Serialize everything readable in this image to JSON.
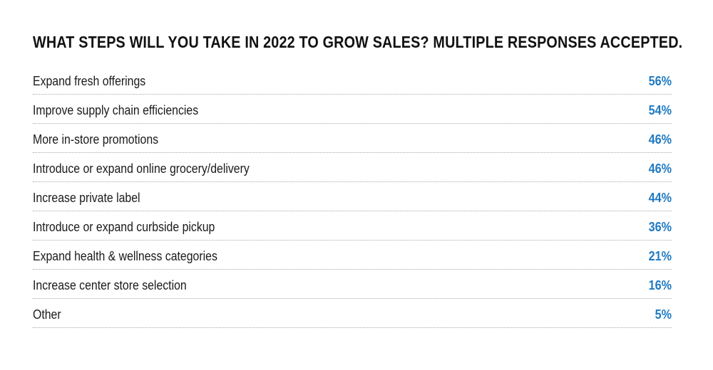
{
  "chart_data": {
    "type": "table",
    "title": "WHAT STEPS WILL YOU TAKE IN 2022 TO GROW SALES? MULTIPLE RESPONSES ACCEPTED.",
    "categories": [
      "Expand fresh offerings",
      "Improve supply chain efficiencies",
      "More in-store promotions",
      "Introduce or expand online grocery/delivery",
      "Increase private label",
      "Introduce or expand curbside pickup",
      "Expand health & wellness categories",
      "Increase center store selection",
      "Other"
    ],
    "values": [
      56,
      54,
      46,
      46,
      44,
      36,
      21,
      16,
      5
    ],
    "value_labels": [
      "56%",
      "54%",
      "46%",
      "46%",
      "44%",
      "36%",
      "21%",
      "16%",
      "5%"
    ],
    "value_color": "#1f7ac2",
    "label_color": "#1a1a1a"
  }
}
